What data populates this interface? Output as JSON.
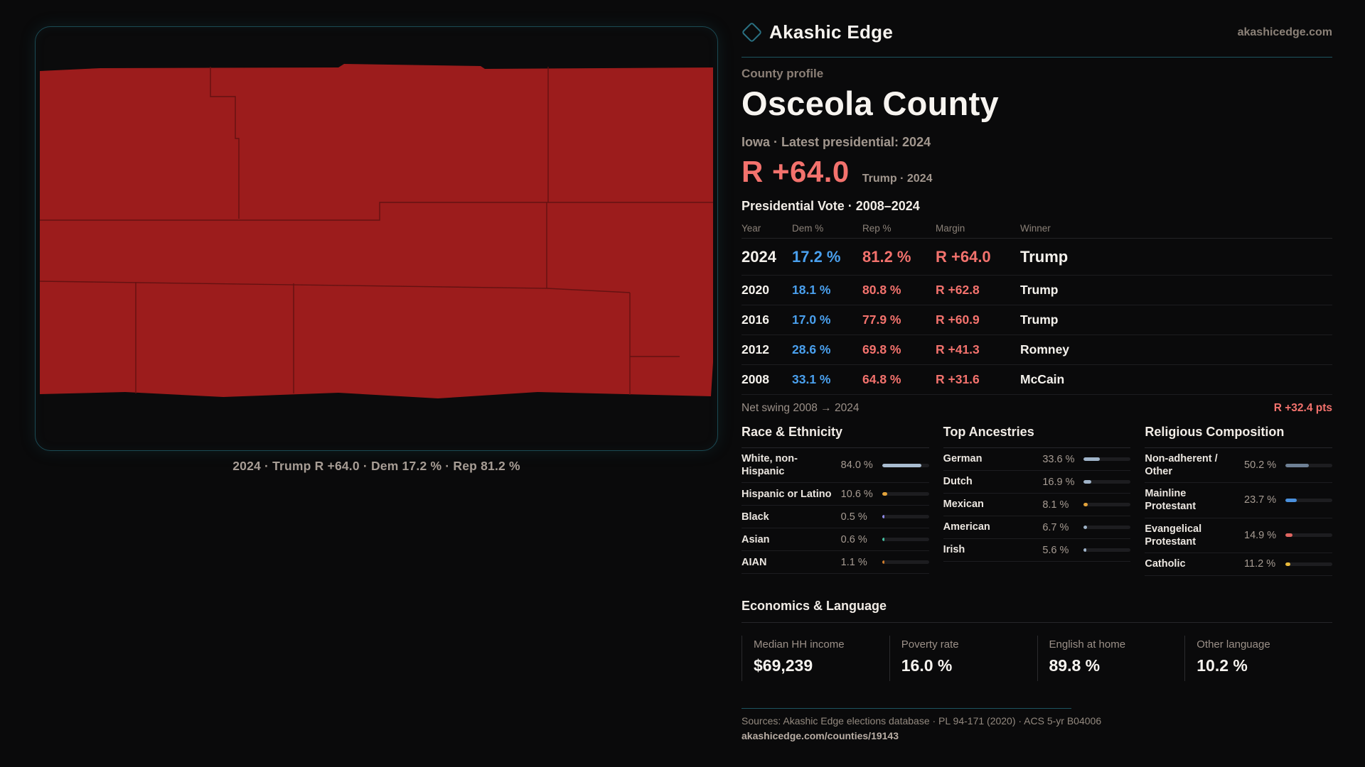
{
  "colors": {
    "background": "#0a0a0b",
    "panel_border_teal": "#1b4a54",
    "accent_red": "#f3726d",
    "accent_blue": "#4aa0ee",
    "county_fill_red": "#9c1c1c",
    "county_boundary": "#5f1111",
    "text_primary": "#f6f3ef",
    "text_muted": "#9b9088"
  },
  "brand": {
    "name": "Akashic Edge",
    "site": "akashicedge.com"
  },
  "map": {
    "caption": "2024 · Trump R +64.0 · Dem 17.2 % · Rep 81.2 %"
  },
  "profile": {
    "kicker": "County profile",
    "name": "Osceola County",
    "meta": "Iowa · Latest presidential: 2024",
    "margin": "R +64.0",
    "margin_note": "Trump · 2024"
  },
  "table": {
    "title": "Presidential Vote · 2008–2024",
    "headers": {
      "year": "Year",
      "dem": "Dem %",
      "rep": "Rep %",
      "margin": "Margin",
      "winner": "Winner"
    },
    "rows": [
      {
        "year": "2024",
        "dem": "17.2 %",
        "rep": "81.2 %",
        "margin": "R +64.0",
        "winner": "Trump",
        "row_class": "featured"
      },
      {
        "year": "2020",
        "dem": "18.1 %",
        "rep": "80.8 %",
        "margin": "R +62.8",
        "winner": "Trump",
        "row_class": ""
      },
      {
        "year": "2016",
        "dem": "17.0 %",
        "rep": "77.9 %",
        "margin": "R +60.9",
        "winner": "Trump",
        "row_class": ""
      },
      {
        "year": "2012",
        "dem": "28.6 %",
        "rep": "69.8 %",
        "margin": "R +41.3",
        "winner": "Romney",
        "row_class": ""
      },
      {
        "year": "2008",
        "dem": "33.1 %",
        "rep": "64.8 %",
        "margin": "R +31.6",
        "winner": "McCain",
        "row_class": ""
      }
    ]
  },
  "net_swing": {
    "label": "Net swing 2008 → 2024",
    "value": "R +32.4 pts"
  },
  "demographics": {
    "race": {
      "title": "Race & Ethnicity",
      "items": [
        {
          "label": "White, non-Hispanic",
          "value": "84.0 %",
          "pct": 84.0,
          "color": "#a9bcd0"
        },
        {
          "label": "Hispanic or Latino",
          "value": "10.6 %",
          "pct": 10.6,
          "color": "#e3a33b"
        },
        {
          "label": "Black",
          "value": "0.5 %",
          "pct": 0.5,
          "color": "#8f8ae6"
        },
        {
          "label": "Asian",
          "value": "0.6 %",
          "pct": 0.6,
          "color": "#45bfa0"
        },
        {
          "label": "AIAN",
          "value": "1.1 %",
          "pct": 1.1,
          "color": "#cf7c2c"
        }
      ]
    },
    "ancestries": {
      "title": "Top Ancestries",
      "items": [
        {
          "label": "German",
          "value": "33.6 %",
          "pct": 33.6,
          "color": "#9fb3c8"
        },
        {
          "label": "Dutch",
          "value": "16.9 %",
          "pct": 16.9,
          "color": "#9fb3c8"
        },
        {
          "label": "Mexican",
          "value": "8.1 %",
          "pct": 8.1,
          "color": "#e3a33b"
        },
        {
          "label": "American",
          "value": "6.7 %",
          "pct": 6.7,
          "color": "#9fb3c8"
        },
        {
          "label": "Irish",
          "value": "5.6 %",
          "pct": 5.6,
          "color": "#9fb3c8"
        }
      ]
    },
    "religion": {
      "title": "Religious Composition",
      "items": [
        {
          "label": "Non-adherent / Other",
          "value": "50.2 %",
          "pct": 50.2,
          "color": "#6e8095"
        },
        {
          "label": "Mainline Protestant",
          "value": "23.7 %",
          "pct": 23.7,
          "color": "#4a90dd"
        },
        {
          "label": "Evangelical Protestant",
          "value": "14.9 %",
          "pct": 14.9,
          "color": "#e06560"
        },
        {
          "label": "Catholic",
          "value": "11.2 %",
          "pct": 11.2,
          "color": "#e9b93a"
        }
      ]
    }
  },
  "economics": {
    "title": "Economics & Language",
    "stats": [
      {
        "label": "Median HH income",
        "value": "$69,239"
      },
      {
        "label": "Poverty rate",
        "value": "16.0 %"
      },
      {
        "label": "English at home",
        "value": "89.8 %"
      },
      {
        "label": "Other language",
        "value": "10.2 %"
      }
    ]
  },
  "footer": {
    "sources": "Sources: Akashic Edge elections database · PL 94-171 (2020) · ACS 5-yr B04006",
    "url": "akashicedge.com/counties/19143"
  }
}
